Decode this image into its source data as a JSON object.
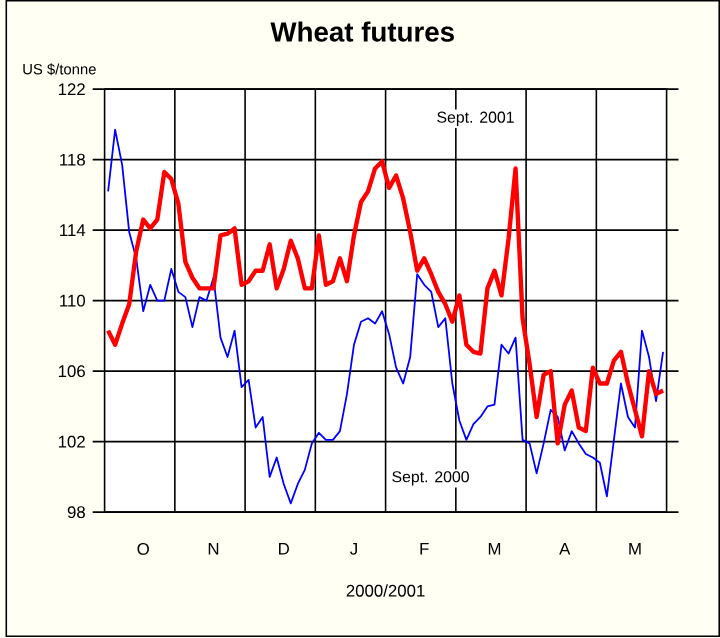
{
  "chart_data": {
    "type": "line",
    "title": "Wheat futures",
    "ylabel": "US $/tonne",
    "xlabel": "2000/2001",
    "ylim": [
      98,
      122
    ],
    "yticks": [
      98,
      102,
      106,
      110,
      114,
      118,
      122
    ],
    "categories": [
      null,
      null,
      null,
      null,
      null,
      "O",
      null,
      null,
      null,
      null,
      null,
      null,
      null,
      null,
      null,
      "N",
      null,
      null,
      null,
      null,
      null,
      null,
      null,
      null,
      null,
      "D",
      null,
      null,
      null,
      null,
      null,
      null,
      null,
      null,
      null,
      "J",
      null,
      null,
      null,
      null,
      null,
      null,
      null,
      null,
      null,
      "F",
      null,
      null,
      null,
      null,
      null,
      null,
      null,
      null,
      null,
      "M",
      null,
      null,
      null,
      null,
      null,
      null,
      null,
      null,
      null,
      "A",
      null,
      null,
      null,
      null,
      null,
      null,
      null,
      null,
      null,
      "M",
      null,
      null,
      null,
      null
    ],
    "grid": true,
    "series": [
      {
        "name": "Sept. 2000",
        "color": "#0000ff",
        "values": [
          116.2,
          119.7,
          117.7,
          113.9,
          112.4,
          109.4,
          110.9,
          110.0,
          110.0,
          111.8,
          110.5,
          110.2,
          108.5,
          110.2,
          110.0,
          111.3,
          107.9,
          106.8,
          108.3,
          105.1,
          105.5,
          102.8,
          103.4,
          100.0,
          101.1,
          99.6,
          98.5,
          99.6,
          100.4,
          101.9,
          102.5,
          102.1,
          102.1,
          102.6,
          104.7,
          107.5,
          108.8,
          109.0,
          108.7,
          109.4,
          108.1,
          106.2,
          105.3,
          106.8,
          111.5,
          110.9,
          110.5,
          108.5,
          109.0,
          105.3,
          103.2,
          102.1,
          103.0,
          103.4,
          104.0,
          104.1,
          107.5,
          107.0,
          107.9,
          102.1,
          101.9,
          100.2,
          101.9,
          103.8,
          103.4,
          101.5,
          102.6,
          101.9,
          101.3,
          101.1,
          100.8,
          98.9,
          102.1,
          105.3,
          103.4,
          102.8,
          108.3,
          106.8,
          104.3,
          107.1
        ]
      },
      {
        "name": "Sept. 2001",
        "color": "#ff0000",
        "values": [
          108.3,
          107.5,
          108.7,
          109.8,
          112.8,
          114.6,
          114.1,
          114.6,
          117.3,
          116.9,
          115.5,
          112.2,
          111.3,
          110.7,
          110.7,
          110.7,
          113.7,
          113.8,
          114.1,
          110.9,
          111.1,
          111.7,
          111.7,
          113.2,
          110.7,
          111.8,
          113.4,
          112.4,
          110.7,
          110.7,
          113.7,
          110.9,
          111.1,
          112.4,
          111.1,
          113.7,
          115.6,
          116.2,
          117.5,
          117.9,
          116.4,
          117.1,
          115.8,
          113.9,
          111.7,
          112.4,
          111.5,
          110.5,
          109.8,
          108.8,
          110.3,
          107.5,
          107.1,
          107.0,
          110.7,
          111.7,
          110.3,
          113.5,
          117.5,
          109.0,
          106.4,
          103.4,
          105.8,
          106.0,
          101.9,
          104.1,
          104.9,
          102.8,
          102.6,
          106.2,
          105.3,
          105.3,
          106.6,
          107.1,
          105.3,
          103.8,
          102.3,
          106.0,
          104.7,
          104.9
        ]
      }
    ]
  }
}
